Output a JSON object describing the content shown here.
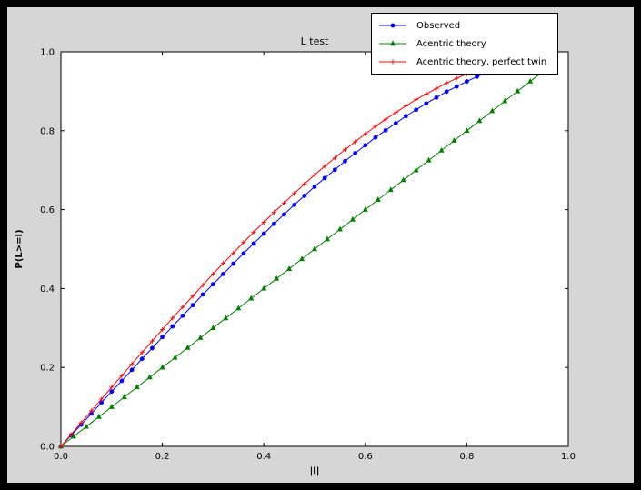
{
  "window": {
    "background": "#000000",
    "figure_background": "#d6d6d6",
    "axes_background": "#ffffff",
    "spine_color": "#000000"
  },
  "chart_data": {
    "type": "line",
    "title": "L test",
    "xlabel": "|l|",
    "ylabel": "P(L>=l)",
    "xlim": [
      0,
      1
    ],
    "ylim": [
      0,
      1
    ],
    "xticks": [
      "0.0",
      "0.2",
      "0.4",
      "0.6",
      "0.8",
      "1.0"
    ],
    "yticks": [
      "0.0",
      "0.2",
      "0.4",
      "0.6",
      "0.8",
      "1.0"
    ],
    "grid": false,
    "legend_position": "upper right, overlapping top of axes",
    "series": [
      {
        "name": "Observed",
        "color": "#0000ff",
        "marker": "circle",
        "x": [
          0,
          0.02,
          0.04,
          0.06,
          0.08,
          0.1,
          0.12,
          0.14,
          0.16,
          0.18,
          0.2,
          0.22,
          0.24,
          0.26,
          0.28,
          0.3,
          0.32,
          0.34,
          0.36,
          0.38,
          0.4,
          0.42,
          0.44,
          0.46,
          0.48,
          0.5,
          0.52,
          0.54,
          0.56,
          0.58,
          0.6,
          0.62,
          0.64,
          0.66,
          0.68,
          0.7,
          0.72,
          0.74,
          0.76,
          0.78,
          0.8,
          0.82,
          0.84,
          0.86
        ],
        "y": [
          0,
          0.028,
          0.055,
          0.083,
          0.111,
          0.139,
          0.166,
          0.194,
          0.222,
          0.249,
          0.277,
          0.304,
          0.331,
          0.358,
          0.385,
          0.411,
          0.437,
          0.463,
          0.489,
          0.514,
          0.539,
          0.564,
          0.588,
          0.612,
          0.635,
          0.658,
          0.68,
          0.701,
          0.723,
          0.743,
          0.763,
          0.783,
          0.801,
          0.819,
          0.837,
          0.853,
          0.869,
          0.884,
          0.899,
          0.912,
          0.925,
          0.937,
          0.948,
          0.958
        ]
      },
      {
        "name": "Acentric theory",
        "color": "#008000",
        "marker": "triangle",
        "x": [
          0,
          0.025,
          0.05,
          0.075,
          0.1,
          0.125,
          0.15,
          0.175,
          0.2,
          0.225,
          0.25,
          0.275,
          0.3,
          0.325,
          0.35,
          0.375,
          0.4,
          0.425,
          0.45,
          0.475,
          0.5,
          0.525,
          0.55,
          0.575,
          0.6,
          0.625,
          0.65,
          0.675,
          0.7,
          0.725,
          0.75,
          0.775,
          0.8,
          0.825,
          0.85,
          0.875,
          0.9,
          0.925,
          0.95,
          0.975
        ],
        "y": [
          0,
          0.025,
          0.05,
          0.075,
          0.1,
          0.125,
          0.15,
          0.175,
          0.2,
          0.225,
          0.25,
          0.275,
          0.3,
          0.325,
          0.35,
          0.375,
          0.4,
          0.425,
          0.45,
          0.475,
          0.5,
          0.525,
          0.55,
          0.575,
          0.6,
          0.625,
          0.65,
          0.675,
          0.7,
          0.725,
          0.75,
          0.775,
          0.8,
          0.825,
          0.85,
          0.875,
          0.9,
          0.925,
          0.95,
          0.975
        ]
      },
      {
        "name": "Acentric theory, perfect twin",
        "color": "#ff0000",
        "marker": "plus",
        "x": [
          0,
          0.02,
          0.04,
          0.06,
          0.08,
          0.1,
          0.12,
          0.14,
          0.16,
          0.18,
          0.2,
          0.22,
          0.24,
          0.26,
          0.28,
          0.3,
          0.32,
          0.34,
          0.36,
          0.38,
          0.4,
          0.42,
          0.44,
          0.46,
          0.48,
          0.5,
          0.52,
          0.54,
          0.56,
          0.58,
          0.6,
          0.62,
          0.64,
          0.66,
          0.68,
          0.7,
          0.72,
          0.74,
          0.76,
          0.78,
          0.8,
          0.82,
          0.84,
          0.86,
          0.88
        ],
        "y": [
          0,
          0.03,
          0.06,
          0.09,
          0.12,
          0.15,
          0.179,
          0.209,
          0.238,
          0.267,
          0.296,
          0.325,
          0.353,
          0.381,
          0.409,
          0.437,
          0.464,
          0.49,
          0.517,
          0.543,
          0.568,
          0.593,
          0.617,
          0.641,
          0.665,
          0.688,
          0.71,
          0.731,
          0.752,
          0.772,
          0.792,
          0.811,
          0.829,
          0.846,
          0.863,
          0.879,
          0.893,
          0.907,
          0.921,
          0.933,
          0.944,
          0.954,
          0.964,
          0.972,
          0.979
        ]
      }
    ]
  }
}
